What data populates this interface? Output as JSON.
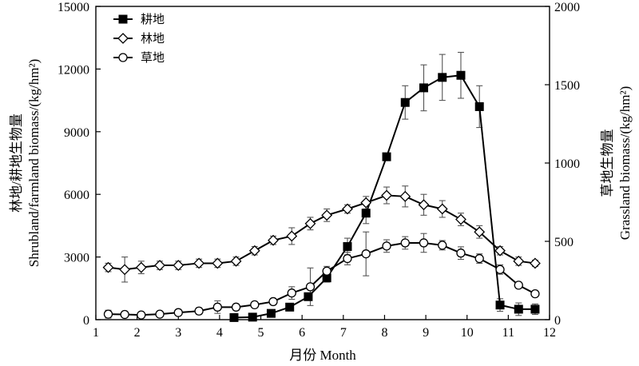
{
  "chart_data": {
    "type": "line",
    "xlabel": "月份 Month",
    "ylabel_left": "Shrubland/耕地生物量/(kg/hm²) · 林地/耕地/farmland biomass/(kg/hm²)",
    "ylabel_left_lines": [
      "林地/耕地生物量",
      "Shrubland/farmland biomass/(kg/hm²)"
    ],
    "ylabel_right_lines": [
      "草地生物量",
      "Grassland biomass/(kg/hm²)"
    ],
    "xlim": [
      1,
      12
    ],
    "ylim_left": [
      0,
      15000
    ],
    "ylim_right": [
      0,
      2000
    ],
    "xticks": [
      "1",
      "2",
      "3",
      "4",
      "5",
      "6",
      "7",
      "8",
      "9",
      "10",
      "11",
      "12"
    ],
    "yticks_left": [
      "0",
      "3000",
      "6000",
      "9000",
      "12000",
      "15000"
    ],
    "yticks_right": [
      "0",
      "500",
      "1000",
      "1500",
      "2000"
    ],
    "legend_position": "top-left",
    "grid": false,
    "series": [
      {
        "name": "耕地",
        "axis": "left",
        "marker": "filled-square",
        "x": [
          4.35,
          4.8,
          5.25,
          5.7,
          6.15,
          6.6,
          7.1,
          7.55,
          8.05,
          8.5,
          8.95,
          9.4,
          9.85,
          10.3,
          10.8,
          11.25,
          11.65
        ],
        "y": [
          100,
          120,
          300,
          600,
          1100,
          2000,
          3500,
          5100,
          7800,
          10400,
          11100,
          11600,
          11700,
          10200,
          700,
          500,
          500
        ],
        "err": [
          0,
          0,
          0,
          0,
          0,
          200,
          400,
          500,
          0,
          800,
          1100,
          1100,
          1100,
          1000,
          300,
          300,
          250
        ]
      },
      {
        "name": "林地",
        "axis": "left",
        "marker": "open-diamond",
        "x": [
          1.3,
          1.7,
          2.1,
          2.55,
          3.0,
          3.5,
          3.95,
          4.4,
          4.85,
          5.3,
          5.75,
          6.2,
          6.6,
          7.1,
          7.55,
          8.05,
          8.5,
          8.95,
          9.4,
          9.85,
          10.3,
          10.8,
          11.25,
          11.65
        ],
        "y": [
          2500,
          2400,
          2500,
          2600,
          2600,
          2700,
          2700,
          2800,
          3300,
          3800,
          4000,
          4600,
          5000,
          5300,
          5600,
          5950,
          5900,
          5500,
          5300,
          4800,
          4200,
          3300,
          2800,
          2700
        ],
        "err": [
          200,
          600,
          300,
          200,
          200,
          200,
          200,
          200,
          200,
          200,
          400,
          300,
          300,
          200,
          300,
          400,
          500,
          500,
          400,
          300,
          300,
          200,
          200,
          150
        ]
      },
      {
        "name": "草地",
        "axis": "right",
        "marker": "open-circle",
        "x": [
          1.3,
          1.7,
          2.1,
          2.55,
          3.0,
          3.5,
          3.95,
          4.4,
          4.85,
          5.3,
          5.75,
          6.2,
          6.6,
          7.1,
          7.55,
          8.05,
          8.5,
          8.95,
          9.4,
          9.85,
          10.3,
          10.8,
          11.25,
          11.65
        ],
        "y": [
          35,
          33,
          30,
          35,
          45,
          55,
          80,
          80,
          95,
          115,
          170,
          210,
          310,
          390,
          420,
          470,
          490,
          490,
          475,
          425,
          390,
          320,
          220,
          165
        ],
        "err": [
          25,
          15,
          10,
          10,
          15,
          20,
          40,
          20,
          15,
          20,
          40,
          120,
          30,
          40,
          140,
          40,
          40,
          60,
          30,
          40,
          30,
          30,
          0,
          0
        ]
      }
    ]
  }
}
